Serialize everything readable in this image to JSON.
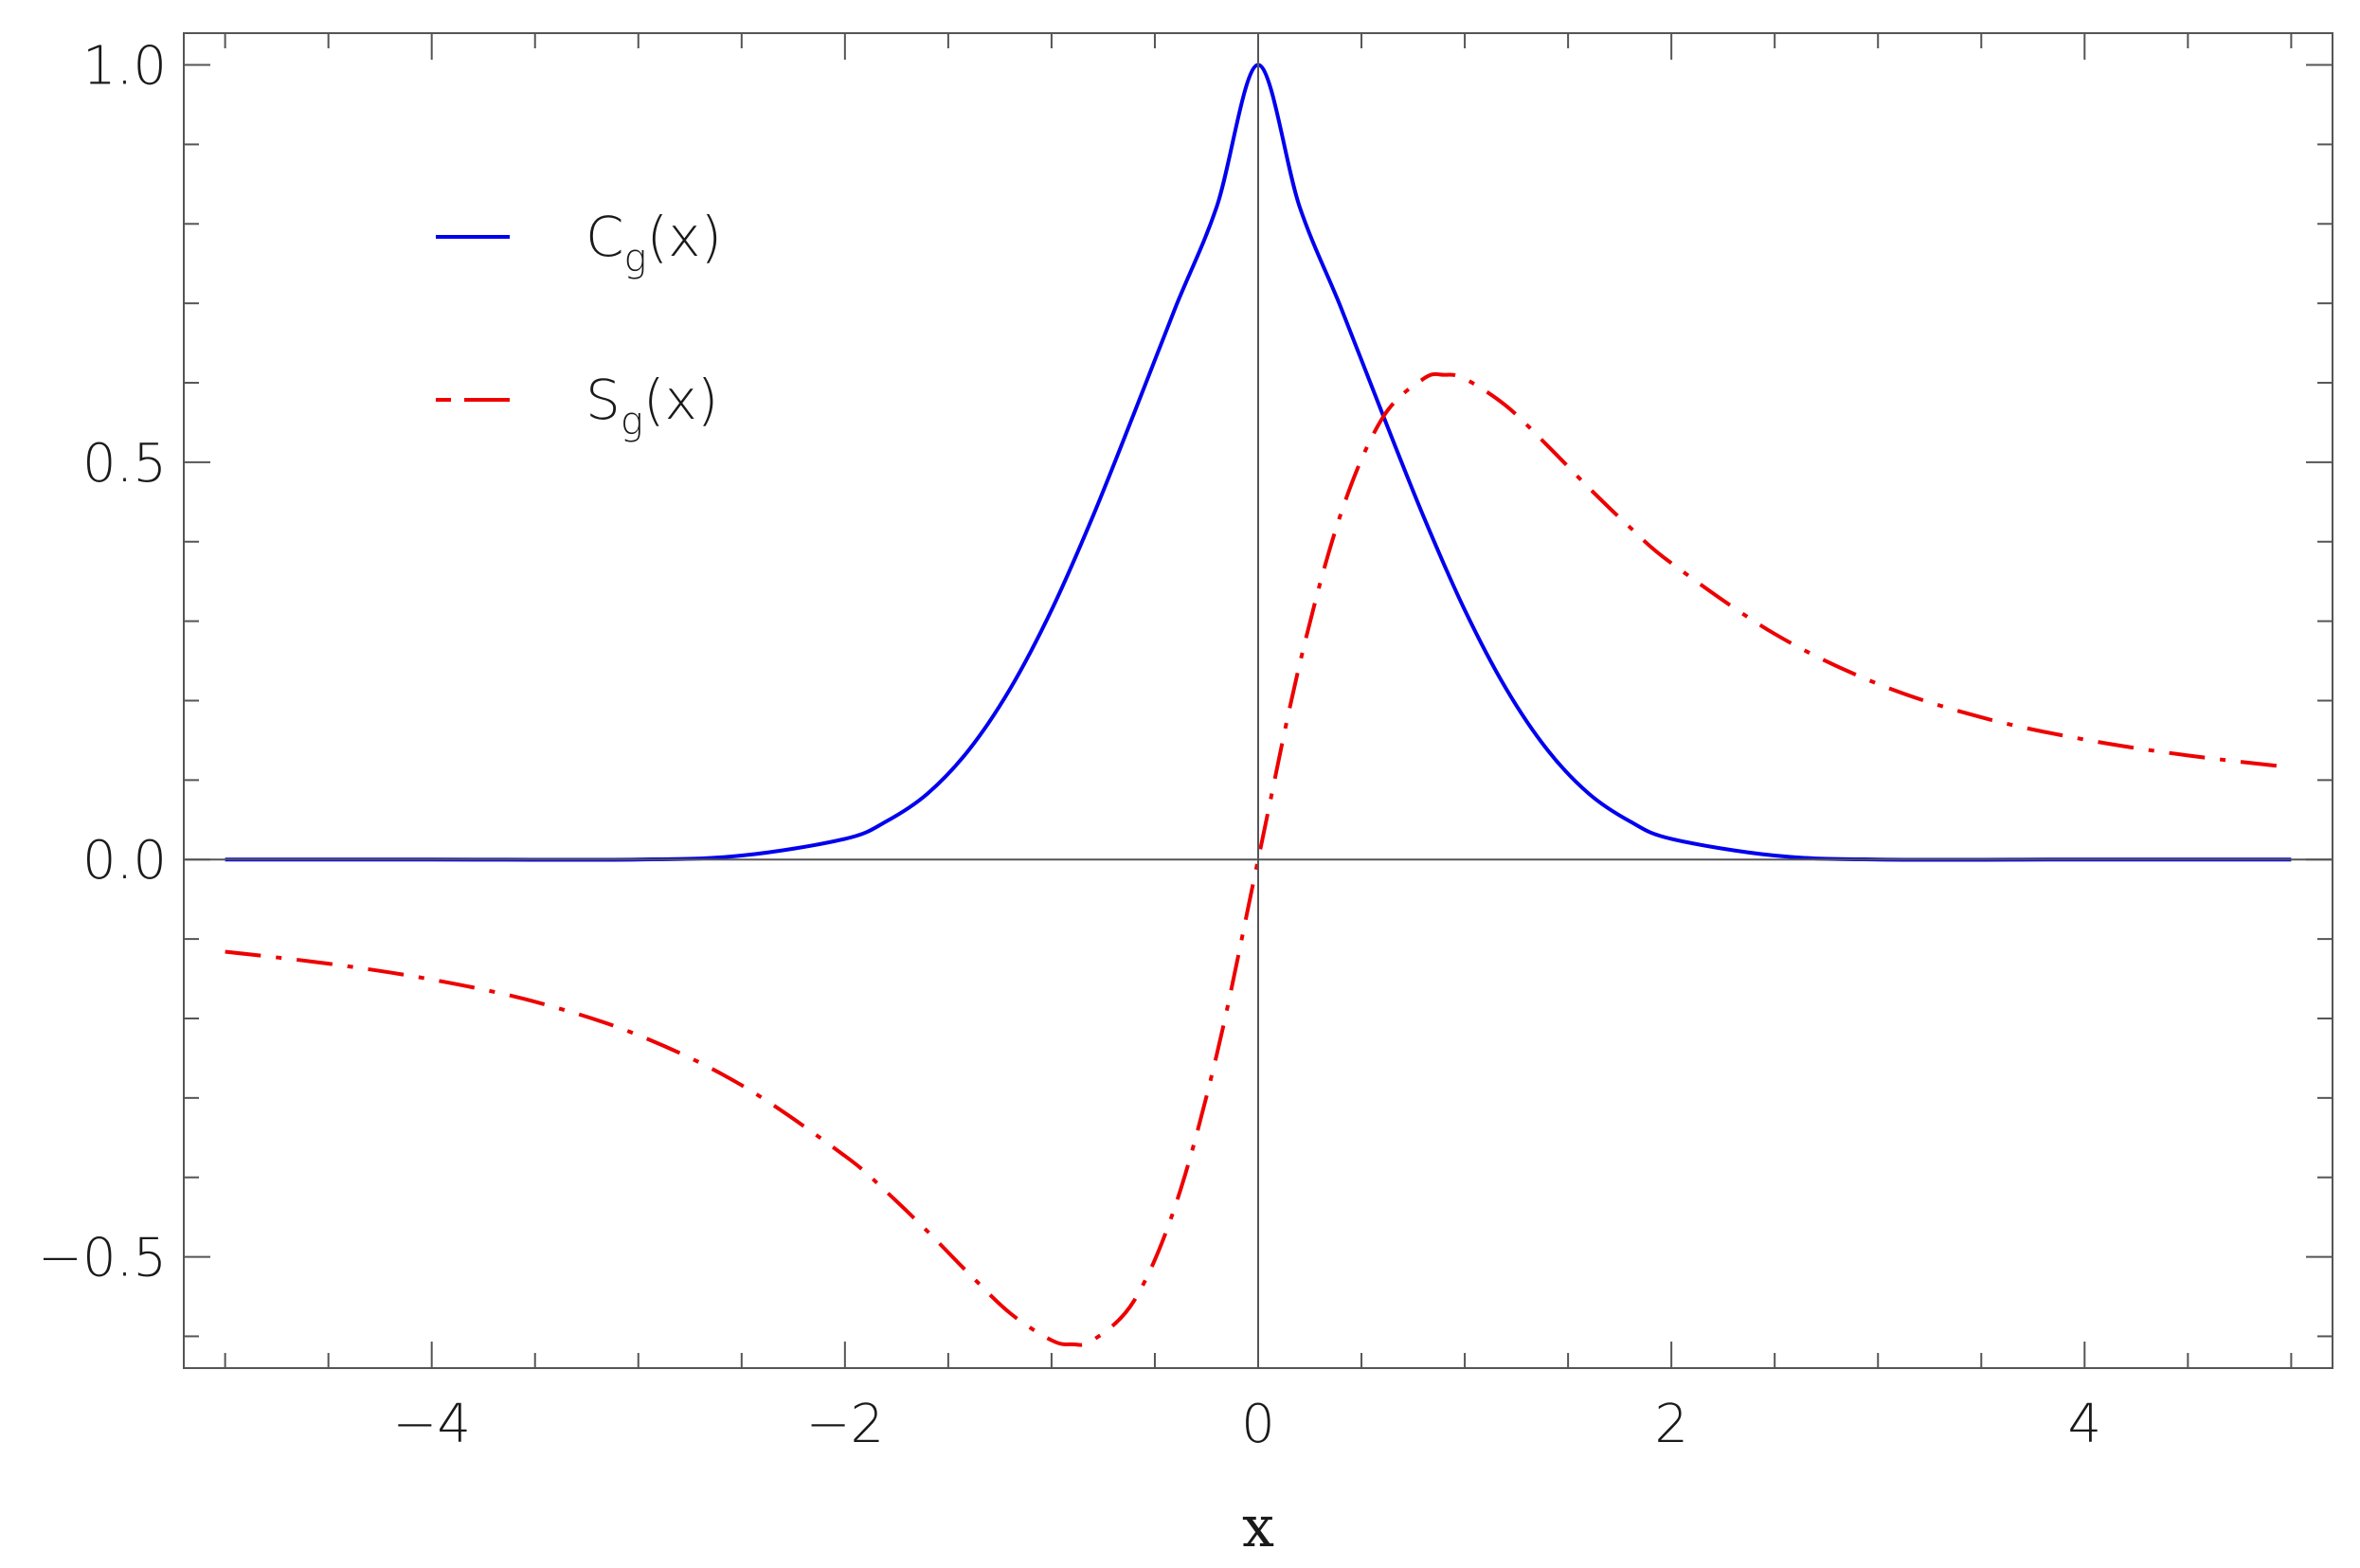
{
  "chart_data": {
    "type": "line",
    "xlabel": "x",
    "ylabel": "",
    "xlim": [
      -5.2,
      5.2
    ],
    "ylim": [
      -0.64,
      1.04
    ],
    "x_ticks": [
      -4,
      -2,
      0,
      2,
      4
    ],
    "x_tick_labels": [
      "−4",
      "−2",
      "0",
      "2",
      "4"
    ],
    "y_ticks": [
      -0.5,
      0.0,
      0.5,
      1.0
    ],
    "y_tick_labels": [
      "−0.5",
      "0.0",
      "0.5",
      "1.0"
    ],
    "grid": false,
    "legend_position": "top-left",
    "series": [
      {
        "name_main": "C",
        "name_sub": "g",
        "name_tail": "(x)",
        "color": "#0000ee",
        "style": "solid",
        "x": [
          -5,
          -4,
          -3,
          -2.5,
          -2,
          -1.8,
          -1.6,
          -1.4,
          -1.2,
          -1.0,
          -0.8,
          -0.6,
          -0.4,
          -0.2,
          0,
          0.2,
          0.4,
          0.6,
          0.8,
          1.0,
          1.2,
          1.4,
          1.6,
          1.8,
          2.0,
          2.5,
          3,
          4,
          5
        ],
        "y": [
          0.0,
          0.0,
          0.0,
          0.005,
          0.026,
          0.048,
          0.083,
          0.138,
          0.215,
          0.314,
          0.432,
          0.562,
          0.695,
          0.822,
          1.0,
          0.822,
          0.695,
          0.562,
          0.432,
          0.314,
          0.215,
          0.138,
          0.083,
          0.048,
          0.026,
          0.005,
          0.0,
          0.0,
          0.0
        ]
      },
      {
        "name_main": "S",
        "name_sub": "g",
        "name_tail": "(x)",
        "color": "#ee0000",
        "style": "dashdot",
        "x": [
          -5,
          -4.5,
          -4,
          -3.5,
          -3,
          -2.5,
          -2,
          -1.8,
          -1.6,
          -1.4,
          -1.2,
          -1.0,
          -0.9,
          -0.8,
          -0.6,
          -0.4,
          -0.2,
          0,
          0.2,
          0.4,
          0.6,
          0.8,
          0.9,
          1.0,
          1.2,
          1.4,
          1.6,
          1.8,
          2.0,
          2.5,
          3,
          3.5,
          4,
          4.5,
          5
        ],
        "y": [
          -0.116,
          -0.131,
          -0.151,
          -0.179,
          -0.221,
          -0.284,
          -0.373,
          -0.418,
          -0.468,
          -0.521,
          -0.571,
          -0.605,
          -0.61,
          -0.605,
          -0.555,
          -0.435,
          -0.245,
          0.0,
          0.245,
          0.435,
          0.555,
          0.605,
          0.61,
          0.605,
          0.571,
          0.521,
          0.468,
          0.418,
          0.373,
          0.284,
          0.221,
          0.179,
          0.151,
          0.131,
          0.116
        ]
      }
    ]
  }
}
